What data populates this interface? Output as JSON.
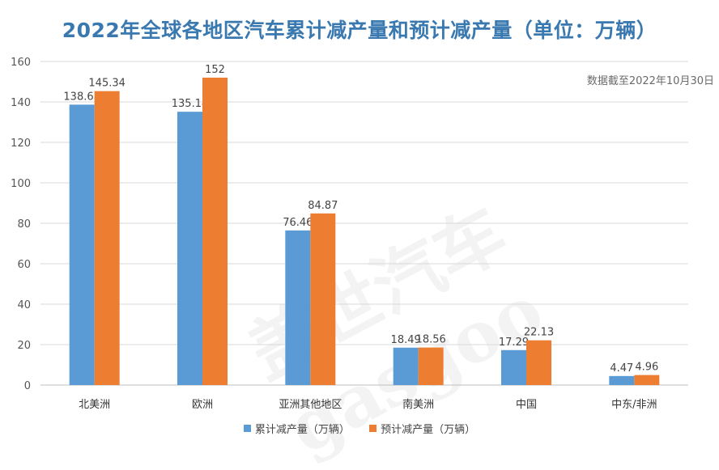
{
  "chart_data": {
    "type": "bar",
    "title": "2022年全球各地区汽车累计减产量和预计减产量（单位：万辆）",
    "annotation": "数据截至2022年10月30日",
    "categories": [
      "北美洲",
      "欧洲",
      "亚洲其他地区",
      "南美洲",
      "中国",
      "中东/非洲"
    ],
    "series": [
      {
        "name": "累计减产量（万辆）",
        "color": "#5b9bd5",
        "values": [
          138.65,
          135.14,
          76.46,
          18.49,
          17.29,
          4.47
        ]
      },
      {
        "name": "预计减产量（万辆）",
        "color": "#ed7d31",
        "values": [
          145.34,
          152,
          84.87,
          18.56,
          22.13,
          4.96
        ]
      }
    ],
    "ylim": [
      0,
      160
    ],
    "yticks": [
      0,
      20,
      40,
      60,
      80,
      100,
      120,
      140,
      160
    ],
    "grid": true,
    "legend_position": "bottom",
    "watermark": "盖世汽车 gasgoo"
  }
}
